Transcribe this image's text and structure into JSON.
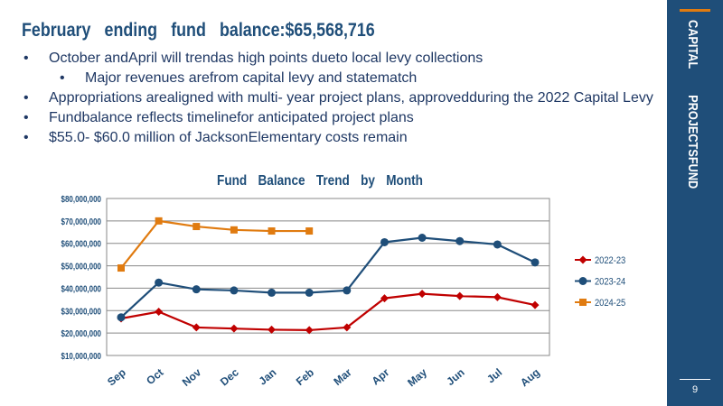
{
  "slide": {
    "title": "February ending fund balance:$65,568,716",
    "bullets": [
      {
        "text": "October andApril will trendas high points dueto local levy collections",
        "level": 1
      },
      {
        "text": "Major revenues arefrom capital levy and statematch",
        "level": 2
      },
      {
        "text": "Appropriations arealigned with multi- year project plans, approvedduring the 2022 Capital Levy",
        "level": 1
      },
      {
        "text": "Fundbalance reflects timelinefor anticipated project plans",
        "level": 1
      },
      {
        "text": "$55.0- $60.0  million of JacksonElementary costs remain",
        "level": 1
      }
    ],
    "sidebar": "CAPITAL PROJECTSFUND",
    "page_number": "9"
  },
  "chart_data": {
    "type": "line",
    "title": "Fund Balance Trend by Month",
    "categories": [
      "Sep",
      "Oct",
      "Nov",
      "Dec",
      "Jan",
      "Feb",
      "Mar",
      "Apr",
      "May",
      "Jun",
      "Jul",
      "Aug"
    ],
    "series": [
      {
        "name": "2022-23",
        "color": "#c00000",
        "marker": "diamond",
        "values": [
          26500000,
          29500000,
          22500000,
          22000000,
          21500000,
          21300000,
          22500000,
          35500000,
          37500000,
          36500000,
          36000000,
          32500000
        ]
      },
      {
        "name": "2023-24",
        "color": "#1f4e79",
        "marker": "circle",
        "values": [
          27000000,
          42500000,
          39500000,
          39000000,
          38000000,
          38000000,
          39000000,
          60500000,
          62500000,
          61000000,
          59500000,
          51500000
        ]
      },
      {
        "name": "2024-25",
        "color": "#e07b10",
        "marker": "square",
        "values": [
          49000000,
          70000000,
          67500000,
          66000000,
          65500000,
          65500000,
          null,
          null,
          null,
          null,
          null,
          null
        ]
      }
    ],
    "ylim": [
      10000000,
      80000000
    ],
    "yticks": [
      {
        "value": 10000000,
        "label": "$10,000,000"
      },
      {
        "value": 20000000,
        "label": "$20,000,000"
      },
      {
        "value": 30000000,
        "label": "$30,000,000"
      },
      {
        "value": 40000000,
        "label": "$40,000,000"
      },
      {
        "value": 50000000,
        "label": "$50,000,000"
      },
      {
        "value": 60000000,
        "label": "$60,000,000"
      },
      {
        "value": 70000000,
        "label": "$70,000,000"
      },
      {
        "value": 80000000,
        "label": "$80,000,000"
      }
    ],
    "grid": true,
    "legend": "right"
  }
}
